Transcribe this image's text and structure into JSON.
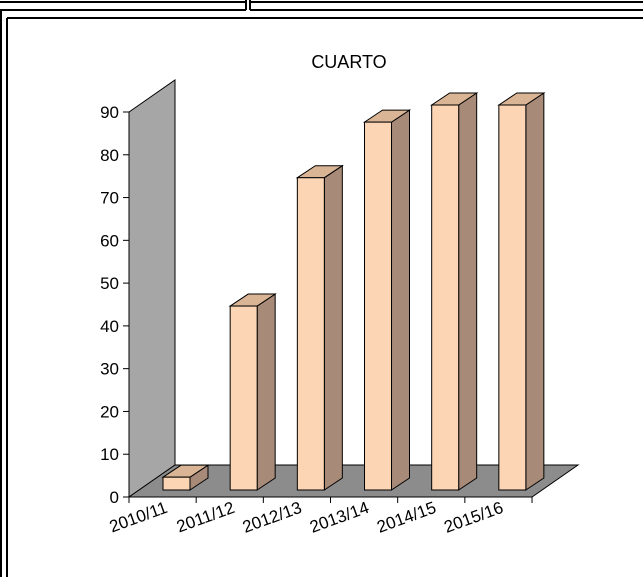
{
  "chart_data": {
    "type": "bar",
    "title": "CUARTO",
    "categories": [
      "2010/11",
      "2011/12",
      "2012/13",
      "2013/14",
      "2014/15",
      "2015/16"
    ],
    "values": [
      3,
      43,
      73,
      86,
      90,
      90
    ],
    "ylim": [
      0,
      90
    ],
    "yticks": [
      0,
      10,
      20,
      30,
      40,
      50,
      60,
      70,
      80,
      90
    ],
    "three_d": true,
    "grid": false,
    "legend": "none",
    "colors": {
      "bar_front": "#fcd5b4",
      "bar_top": "#d9b596",
      "bar_side": "#a88a78",
      "back_wall": "#a6a6a6",
      "floor": "#8c8c8c",
      "outline": "#000000"
    }
  }
}
